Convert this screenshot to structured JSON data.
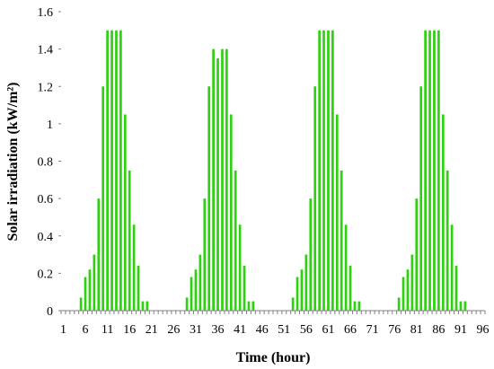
{
  "chart_data": {
    "type": "bar",
    "xlabel": "Time (hour)",
    "ylabel": "Solar irradiation (kW/m²)",
    "ylim": [
      0,
      1.6
    ],
    "yticks": [
      "0",
      "0.2",
      "0.4",
      "0.6",
      "0.8",
      "1",
      "1.2",
      "1.4",
      "1.6"
    ],
    "xticks": [
      "1",
      "6",
      "11",
      "16",
      "21",
      "26",
      "31",
      "36",
      "41",
      "46",
      "51",
      "56",
      "61",
      "66",
      "71",
      "76",
      "81",
      "86",
      "91",
      "96"
    ],
    "x": [
      1,
      2,
      3,
      4,
      5,
      6,
      7,
      8,
      9,
      10,
      11,
      12,
      13,
      14,
      15,
      16,
      17,
      18,
      19,
      20,
      21,
      22,
      23,
      24,
      25,
      26,
      27,
      28,
      29,
      30,
      31,
      32,
      33,
      34,
      35,
      36,
      37,
      38,
      39,
      40,
      41,
      42,
      43,
      44,
      45,
      46,
      47,
      48,
      49,
      50,
      51,
      52,
      53,
      54,
      55,
      56,
      57,
      58,
      59,
      60,
      61,
      62,
      63,
      64,
      65,
      66,
      67,
      68,
      69,
      70,
      71,
      72,
      73,
      74,
      75,
      76,
      77,
      78,
      79,
      80,
      81,
      82,
      83,
      84,
      85,
      86,
      87,
      88,
      89,
      90,
      91,
      92,
      93,
      94,
      95,
      96
    ],
    "values": [
      0,
      0,
      0,
      0,
      0.07,
      0.18,
      0.22,
      0.3,
      0.6,
      1.2,
      1.5,
      1.5,
      1.5,
      1.5,
      1.05,
      0.75,
      0.46,
      0.24,
      0.05,
      0.05,
      0,
      0,
      0,
      0,
      0,
      0,
      0,
      0,
      0.07,
      0.18,
      0.22,
      0.3,
      0.6,
      1.2,
      1.4,
      1.35,
      1.4,
      1.4,
      1.05,
      0.75,
      0.46,
      0.24,
      0.05,
      0.05,
      0,
      0,
      0,
      0,
      0,
      0,
      0,
      0,
      0.07,
      0.18,
      0.22,
      0.3,
      0.6,
      1.2,
      1.5,
      1.5,
      1.5,
      1.5,
      1.05,
      0.75,
      0.46,
      0.24,
      0.05,
      0.05,
      0,
      0,
      0,
      0,
      0,
      0,
      0,
      0,
      0.07,
      0.18,
      0.22,
      0.3,
      0.6,
      1.2,
      1.5,
      1.5,
      1.5,
      1.5,
      1.05,
      0.75,
      0.46,
      0.24,
      0.05,
      0.05,
      0,
      0,
      0,
      0
    ],
    "grid": false,
    "legend": "none",
    "colors": {
      "bar": "#2ed10f",
      "axis": "#808080"
    }
  }
}
